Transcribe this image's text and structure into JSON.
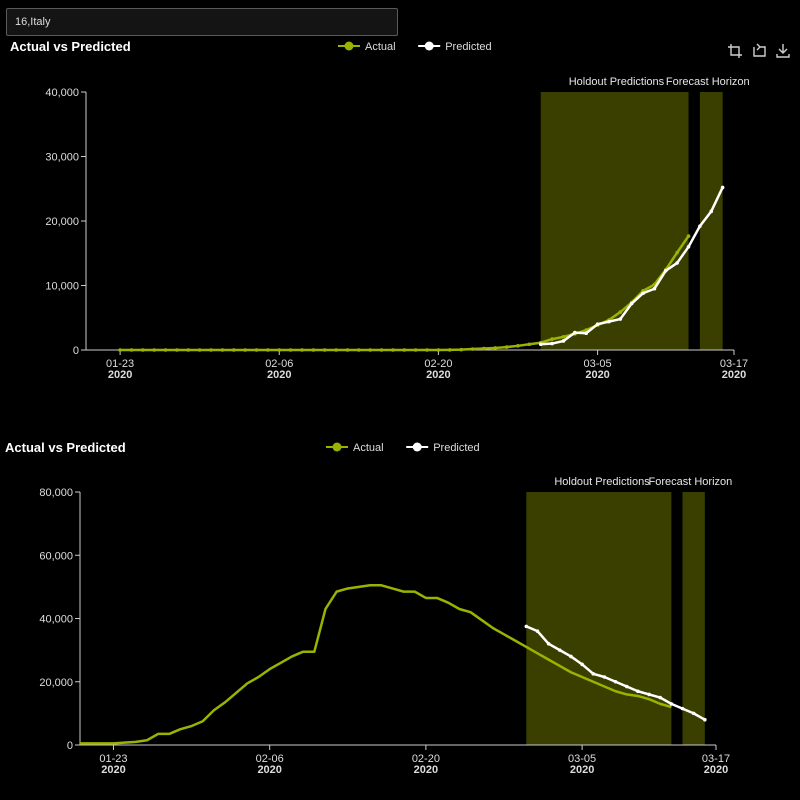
{
  "series_select": {
    "value": "16,Italy"
  },
  "toolbar": {
    "icons": [
      "crop-icon",
      "reset-icon",
      "download-icon"
    ]
  },
  "colors": {
    "actual": "#9bb300",
    "predicted": "#ffffff",
    "holdout_band": "#3a3f00",
    "axis": "#cccccc",
    "background": "#000000"
  },
  "chart_data": [
    {
      "type": "line",
      "title": "Actual vs Predicted",
      "legend": {
        "position": "top-center",
        "entries": [
          "Actual",
          "Predicted"
        ]
      },
      "x_range": [
        "2020-01-20",
        "2020-03-17"
      ],
      "ylim": [
        0,
        40000
      ],
      "y_ticks": [
        0,
        10000,
        20000,
        30000,
        40000
      ],
      "y_tick_labels": [
        "0",
        "10,000",
        "20,000",
        "30,000",
        "40,000"
      ],
      "x_ticks": [
        {
          "date": "2020-01-23",
          "label": "01-23",
          "sub": "2020"
        },
        {
          "date": "2020-02-06",
          "label": "02-06",
          "sub": "2020"
        },
        {
          "date": "2020-02-20",
          "label": "02-20",
          "sub": "2020"
        },
        {
          "date": "2020-03-05",
          "label": "03-05",
          "sub": "2020"
        },
        {
          "date": "2020-03-17",
          "label": "03-17",
          "sub": "2020"
        }
      ],
      "grid": false,
      "annotations": [
        {
          "label": "Holdout Predictions",
          "from": "2020-02-29",
          "to": "2020-03-13"
        },
        {
          "label": "Forecast Horizon",
          "from": "2020-03-14",
          "to": "2020-03-16"
        }
      ],
      "series": [
        {
          "name": "Actual",
          "markers": true,
          "x": [
            "2020-01-23",
            "2020-01-24",
            "2020-01-25",
            "2020-01-26",
            "2020-01-27",
            "2020-01-28",
            "2020-01-29",
            "2020-01-30",
            "2020-01-31",
            "2020-02-01",
            "2020-02-02",
            "2020-02-03",
            "2020-02-04",
            "2020-02-05",
            "2020-02-06",
            "2020-02-07",
            "2020-02-08",
            "2020-02-09",
            "2020-02-10",
            "2020-02-11",
            "2020-02-12",
            "2020-02-13",
            "2020-02-14",
            "2020-02-15",
            "2020-02-16",
            "2020-02-17",
            "2020-02-18",
            "2020-02-19",
            "2020-02-20",
            "2020-02-21",
            "2020-02-22",
            "2020-02-23",
            "2020-02-24",
            "2020-02-25",
            "2020-02-26",
            "2020-02-27",
            "2020-02-28",
            "2020-02-29",
            "2020-03-01",
            "2020-03-02",
            "2020-03-03",
            "2020-03-04",
            "2020-03-05",
            "2020-03-06",
            "2020-03-07",
            "2020-03-08",
            "2020-03-09",
            "2020-03-10",
            "2020-03-11",
            "2020-03-12",
            "2020-03-13"
          ],
          "values": [
            0,
            0,
            0,
            0,
            0,
            0,
            0,
            0,
            0,
            0,
            0,
            0,
            0,
            0,
            0,
            0,
            0,
            0,
            0,
            0,
            0,
            0,
            0,
            0,
            0,
            0,
            0,
            0,
            0,
            20,
            60,
            150,
            230,
            320,
            450,
            650,
            890,
            1130,
            1690,
            2040,
            2500,
            3090,
            3860,
            4640,
            5880,
            7380,
            9170,
            10150,
            12460,
            15110,
            17660
          ]
        },
        {
          "name": "Predicted",
          "markers": true,
          "x": [
            "2020-02-29",
            "2020-03-01",
            "2020-03-02",
            "2020-03-03",
            "2020-03-04",
            "2020-03-05",
            "2020-03-06",
            "2020-03-07",
            "2020-03-08",
            "2020-03-09",
            "2020-03-10",
            "2020-03-11",
            "2020-03-12",
            "2020-03-13",
            "2020-03-14",
            "2020-03-15",
            "2020-03-16"
          ],
          "values": [
            900,
            1000,
            1400,
            2700,
            2600,
            4000,
            4400,
            4800,
            7200,
            8800,
            9500,
            12300,
            13500,
            16000,
            19200,
            21500,
            25200
          ]
        }
      ]
    },
    {
      "type": "line",
      "title": "Actual vs Predicted",
      "legend": {
        "position": "top-center",
        "entries": [
          "Actual",
          "Predicted"
        ]
      },
      "x_range": [
        "2020-01-20",
        "2020-03-17"
      ],
      "ylim": [
        0,
        80000
      ],
      "y_ticks": [
        0,
        20000,
        40000,
        60000,
        80000
      ],
      "y_tick_labels": [
        "0",
        "20,000",
        "40,000",
        "60,000",
        "80,000"
      ],
      "x_ticks": [
        {
          "date": "2020-01-23",
          "label": "01-23",
          "sub": "2020"
        },
        {
          "date": "2020-02-06",
          "label": "02-06",
          "sub": "2020"
        },
        {
          "date": "2020-02-20",
          "label": "02-20",
          "sub": "2020"
        },
        {
          "date": "2020-03-05",
          "label": "03-05",
          "sub": "2020"
        },
        {
          "date": "2020-03-17",
          "label": "03-17",
          "sub": "2020"
        }
      ],
      "grid": false,
      "annotations": [
        {
          "label": "Holdout Predictions",
          "from": "2020-02-29",
          "to": "2020-03-13"
        },
        {
          "label": "Forecast Horizon",
          "from": "2020-03-14",
          "to": "2020-03-16"
        }
      ],
      "series": [
        {
          "name": "Actual",
          "markers": false,
          "x": [
            "2020-01-20",
            "2020-01-23",
            "2020-01-25",
            "2020-01-26",
            "2020-01-27",
            "2020-01-28",
            "2020-01-29",
            "2020-01-30",
            "2020-01-31",
            "2020-02-01",
            "2020-02-02",
            "2020-02-03",
            "2020-02-04",
            "2020-02-05",
            "2020-02-06",
            "2020-02-07",
            "2020-02-08",
            "2020-02-09",
            "2020-02-10",
            "2020-02-11",
            "2020-02-12",
            "2020-02-13",
            "2020-02-14",
            "2020-02-15",
            "2020-02-16",
            "2020-02-17",
            "2020-02-18",
            "2020-02-19",
            "2020-02-20",
            "2020-02-21",
            "2020-02-22",
            "2020-02-23",
            "2020-02-24",
            "2020-02-25",
            "2020-02-26",
            "2020-02-27",
            "2020-02-28",
            "2020-02-29",
            "2020-03-01",
            "2020-03-02",
            "2020-03-03",
            "2020-03-04",
            "2020-03-05",
            "2020-03-06",
            "2020-03-07",
            "2020-03-08",
            "2020-03-09",
            "2020-03-10",
            "2020-03-11",
            "2020-03-12",
            "2020-03-13"
          ],
          "values": [
            500,
            500,
            1000,
            1500,
            3500,
            3500,
            5000,
            6000,
            7500,
            11000,
            13500,
            16500,
            19500,
            21500,
            24000,
            26000,
            28000,
            29500,
            29500,
            43000,
            48500,
            49500,
            50000,
            50500,
            50500,
            49500,
            48500,
            48500,
            46500,
            46500,
            45000,
            43000,
            42000,
            39500,
            37000,
            35000,
            33000,
            31000,
            29000,
            27000,
            25000,
            23000,
            21500,
            20000,
            18500,
            17000,
            16000,
            15500,
            14500,
            13000,
            12000
          ]
        },
        {
          "name": "Predicted",
          "markers": true,
          "x": [
            "2020-02-29",
            "2020-03-01",
            "2020-03-02",
            "2020-03-03",
            "2020-03-04",
            "2020-03-05",
            "2020-03-06",
            "2020-03-07",
            "2020-03-08",
            "2020-03-09",
            "2020-03-10",
            "2020-03-11",
            "2020-03-12",
            "2020-03-13",
            "2020-03-14",
            "2020-03-15",
            "2020-03-16"
          ],
          "values": [
            37500,
            36000,
            32000,
            30000,
            28000,
            25500,
            22500,
            21500,
            20000,
            18500,
            17000,
            16000,
            15000,
            13000,
            11500,
            10000,
            8000
          ]
        }
      ]
    }
  ]
}
